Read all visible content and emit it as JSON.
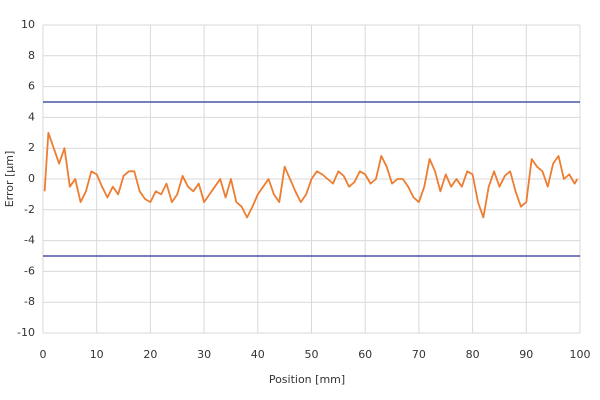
{
  "chart_data": {
    "type": "line",
    "xlabel": "Position [mm]",
    "ylabel": "Error [µm]",
    "xlim": [
      0,
      100
    ],
    "xticks": [
      0,
      10,
      20,
      30,
      40,
      50,
      60,
      70,
      80,
      90,
      100
    ],
    "ylim": [
      -10,
      10
    ],
    "yticks": [
      -10,
      -8,
      -6,
      -4,
      -2,
      0,
      2,
      4,
      6,
      8,
      10
    ],
    "grid": true,
    "hlines": [
      5,
      -5
    ],
    "hline_color": "#4a55a8",
    "x": [
      0.3,
      1,
      2,
      3,
      4,
      5,
      6,
      7,
      8,
      9,
      10,
      11,
      12,
      13,
      14,
      15,
      16,
      17,
      18,
      19,
      20,
      21,
      22,
      23,
      24,
      25,
      26,
      27,
      28,
      29,
      30,
      31,
      32,
      33,
      34,
      35,
      36,
      37,
      38,
      39,
      40,
      41,
      42,
      43,
      44,
      45,
      46,
      47,
      48,
      49,
      50,
      51,
      52,
      53,
      54,
      55,
      56,
      57,
      58,
      59,
      60,
      61,
      62,
      63,
      64,
      65,
      66,
      67,
      68,
      69,
      70,
      71,
      72,
      73,
      74,
      75,
      76,
      77,
      78,
      79,
      80,
      81,
      82,
      83,
      84,
      85,
      86,
      87,
      88,
      89,
      90,
      91,
      92,
      93,
      94,
      95,
      96,
      97,
      98,
      99,
      99.5
    ],
    "series": [
      {
        "color": "#ed7d31",
        "values": [
          -0.8,
          3.0,
          2.0,
          1.0,
          2.0,
          -0.5,
          0,
          -1.5,
          -0.8,
          0.5,
          0.3,
          -0.5,
          -1.2,
          -0.5,
          -1.0,
          0.2,
          0.5,
          0.5,
          -0.8,
          -1.3,
          -1.5,
          -0.8,
          -1.0,
          -0.3,
          -1.5,
          -1.0,
          0.2,
          -0.5,
          -0.8,
          -0.3,
          -1.5,
          -1.0,
          -0.5,
          0,
          -1.2,
          0,
          -1.5,
          -1.8,
          -2.5,
          -1.8,
          -1.0,
          -0.5,
          0,
          -1.0,
          -1.5,
          0.8,
          0,
          -0.8,
          -1.5,
          -1.0,
          0,
          0.5,
          0.3,
          0,
          -0.3,
          0.5,
          0.2,
          -0.5,
          -0.2,
          0.5,
          0.3,
          -0.3,
          0,
          1.5,
          0.8,
          -0.3,
          0,
          0,
          -0.5,
          -1.2,
          -1.5,
          -0.5,
          1.3,
          0.5,
          -0.8,
          0.3,
          -0.5,
          0,
          -0.5,
          0.5,
          0.3,
          -1.5,
          -2.5,
          -0.5,
          0.5,
          -0.5,
          0.2,
          0.5,
          -0.8,
          -1.8,
          -1.5,
          1.3,
          0.8,
          0.5,
          -0.5,
          1.0,
          1.5,
          0,
          0.3,
          -0.3,
          0
        ]
      }
    ]
  }
}
